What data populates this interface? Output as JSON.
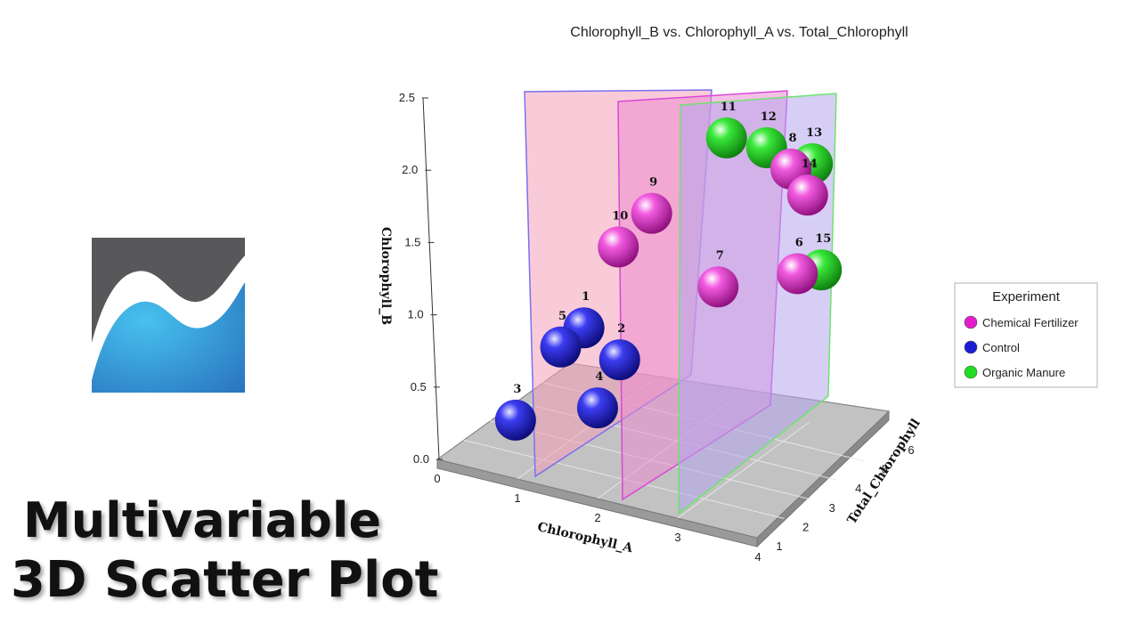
{
  "promo": {
    "line1": "Multivariable",
    "line2": "3D Scatter Plot"
  },
  "logo": {
    "icon": "area-chart-logo-icon",
    "colors": {
      "dark": "#58585a",
      "light": "#3fb4e6",
      "mid": "#2a74bf"
    }
  },
  "chart_data": {
    "type": "scatter",
    "projection": "3d",
    "title": "Chlorophyll_B vs. Chlorophyll_A vs. Total_Chlorophyll",
    "xlabel": "Chlorophyll_A",
    "ylabel": "Total_Chlorophyll",
    "zlabel": "Chlorophyll_B",
    "xlim": [
      0,
      4
    ],
    "ylim": [
      1,
      6
    ],
    "zlim": [
      0,
      2.5
    ],
    "x_ticks": [
      "0",
      "1",
      "2",
      "3",
      "4"
    ],
    "y_ticks": [
      "1",
      "2",
      "3",
      "4",
      "5",
      "6"
    ],
    "z_ticks": [
      "0.0",
      "0.5",
      "1.0",
      "1.5",
      "2.0",
      "2.5"
    ],
    "legend": {
      "title": "Experiment",
      "position": "right"
    },
    "grid": true,
    "series": [
      {
        "name": "Chemical Fertilizer",
        "color": "#e41ccc",
        "points": [
          {
            "label": "6",
            "x": 3.5,
            "y": 4.3,
            "z": 1.32
          },
          {
            "label": "7",
            "x": 2.7,
            "y": 3.7,
            "z": 1.2
          },
          {
            "label": "8",
            "x": 3.3,
            "y": 4.8,
            "z": 1.95
          },
          {
            "label": "9",
            "x": 1.9,
            "y": 3.7,
            "z": 1.6
          },
          {
            "label": "10",
            "x": 1.6,
            "y": 3.3,
            "z": 1.38
          },
          {
            "label": "14",
            "x": 3.6,
            "y": 4.5,
            "z": 1.85
          }
        ]
      },
      {
        "name": "Control",
        "color": "#1b1bd6",
        "points": [
          {
            "label": "1",
            "x": 1.4,
            "y": 2.5,
            "z": 0.9
          },
          {
            "label": "2",
            "x": 1.8,
            "y": 2.6,
            "z": 0.72
          },
          {
            "label": "3",
            "x": 0.8,
            "y": 1.6,
            "z": 0.3
          },
          {
            "label": "4",
            "x": 1.6,
            "y": 2.3,
            "z": 0.4
          },
          {
            "label": "5",
            "x": 1.2,
            "y": 2.2,
            "z": 0.78
          }
        ]
      },
      {
        "name": "Organic Manure",
        "color": "#22dd22",
        "points": [
          {
            "label": "11",
            "x": 2.3,
            "y": 5.4,
            "z": 1.95
          },
          {
            "label": "12",
            "x": 2.8,
            "y": 5.4,
            "z": 1.95
          },
          {
            "label": "13",
            "x": 3.3,
            "y": 5.6,
            "z": 1.88
          },
          {
            "label": "15",
            "x": 3.6,
            "y": 4.9,
            "z": 1.28
          }
        ]
      }
    ],
    "planes": [
      {
        "color": "#f4a0b8",
        "stroke": "#7b6ff0"
      },
      {
        "color": "#ec8ccf",
        "stroke": "#d946d9"
      },
      {
        "color": "#b4a6ec",
        "stroke": "#6ee46e"
      }
    ]
  }
}
